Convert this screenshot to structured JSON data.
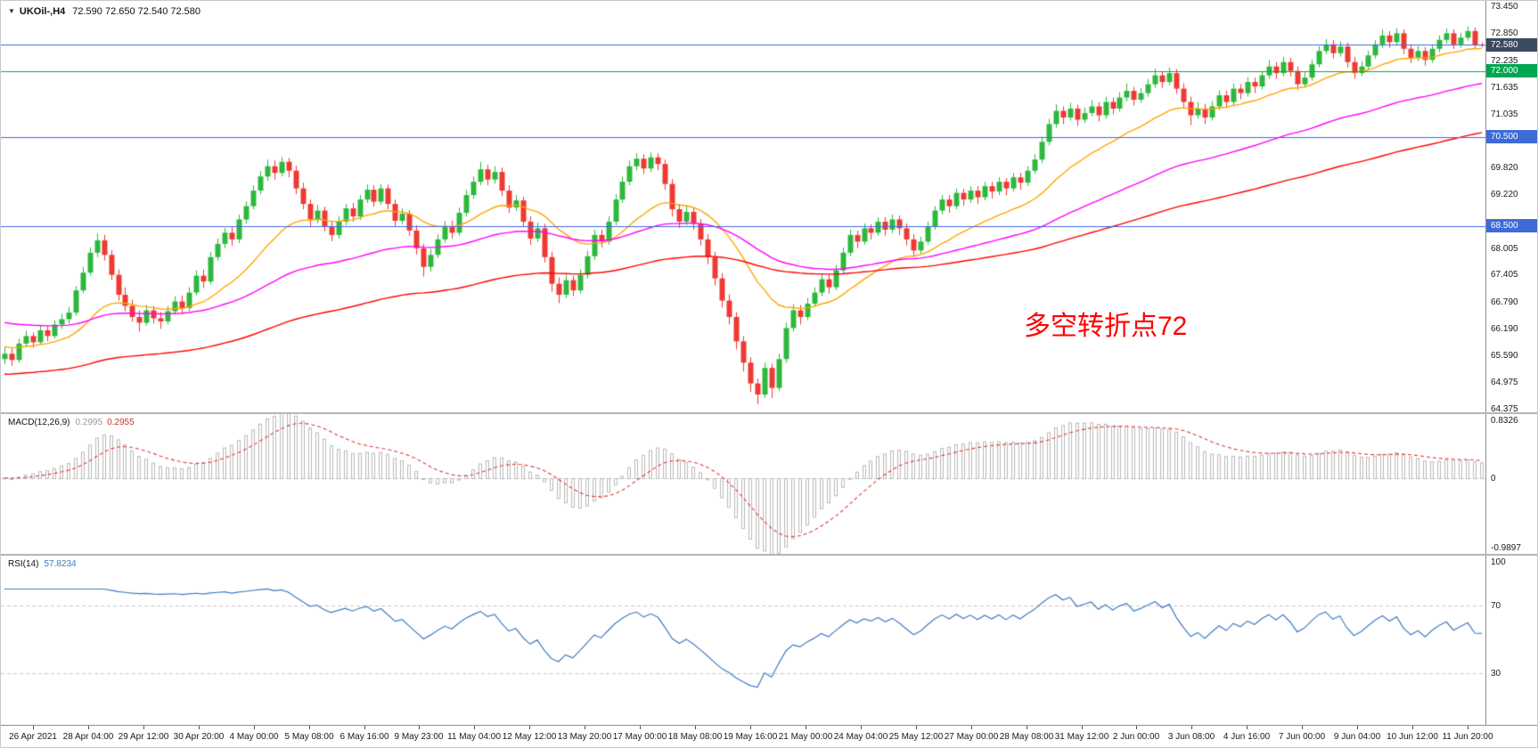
{
  "header": {
    "collapse_icon": "▼",
    "symbol": "UKOil-,H4",
    "quote": "72.590 72.650 72.540 72.580"
  },
  "annotation": {
    "text": "多空转折点72",
    "color": "#ff0000"
  },
  "chart_data": {
    "type": "candlestick",
    "symbol": "UKOil-",
    "timeframe": "H4",
    "title": "UKOil-,H4",
    "price_range": [
      64.3,
      73.58
    ],
    "up_color": "#2db83d",
    "down_color": "#ee3932",
    "candles": [
      [
        65.5,
        65.78,
        65.38,
        65.62
      ],
      [
        65.62,
        65.74,
        65.35,
        65.48
      ],
      [
        65.48,
        65.96,
        65.42,
        65.85
      ],
      [
        65.85,
        66.14,
        65.78,
        66.02
      ],
      [
        66.02,
        66.1,
        65.76,
        65.88
      ],
      [
        65.88,
        66.26,
        65.82,
        66.15
      ],
      [
        66.15,
        66.24,
        65.9,
        66.02
      ],
      [
        66.02,
        66.38,
        65.96,
        66.28
      ],
      [
        66.28,
        66.52,
        66.18,
        66.4
      ],
      [
        66.4,
        66.68,
        66.3,
        66.55
      ],
      [
        66.55,
        67.15,
        66.48,
        67.05
      ],
      [
        67.05,
        67.58,
        66.98,
        67.45
      ],
      [
        67.45,
        68.02,
        67.38,
        67.9
      ],
      [
        67.9,
        68.34,
        67.8,
        68.18
      ],
      [
        68.18,
        68.3,
        67.72,
        67.85
      ],
      [
        67.85,
        67.96,
        67.28,
        67.4
      ],
      [
        67.4,
        67.52,
        66.82,
        66.95
      ],
      [
        66.95,
        67.12,
        66.58,
        66.7
      ],
      [
        66.7,
        66.84,
        66.34,
        66.45
      ],
      [
        66.45,
        66.6,
        66.12,
        66.32
      ],
      [
        66.32,
        66.72,
        66.26,
        66.6
      ],
      [
        66.6,
        66.7,
        66.3,
        66.42
      ],
      [
        66.42,
        66.56,
        66.18,
        66.35
      ],
      [
        66.35,
        66.7,
        66.28,
        66.58
      ],
      [
        66.58,
        66.92,
        66.5,
        66.8
      ],
      [
        66.8,
        66.94,
        66.52,
        66.65
      ],
      [
        66.65,
        67.12,
        66.58,
        67.0
      ],
      [
        67.0,
        67.5,
        66.94,
        67.38
      ],
      [
        67.38,
        67.52,
        67.1,
        67.25
      ],
      [
        67.25,
        67.92,
        67.18,
        67.8
      ],
      [
        67.8,
        68.22,
        67.72,
        68.1
      ],
      [
        68.1,
        68.46,
        68.0,
        68.35
      ],
      [
        68.35,
        68.48,
        68.05,
        68.2
      ],
      [
        68.2,
        68.76,
        68.12,
        68.65
      ],
      [
        68.65,
        69.06,
        68.56,
        68.95
      ],
      [
        68.95,
        69.42,
        68.88,
        69.3
      ],
      [
        69.3,
        69.74,
        69.22,
        69.62
      ],
      [
        69.62,
        70.0,
        69.52,
        69.85
      ],
      [
        69.85,
        69.98,
        69.55,
        69.7
      ],
      [
        69.7,
        70.06,
        69.62,
        69.95
      ],
      [
        69.95,
        70.04,
        69.6,
        69.75
      ],
      [
        69.75,
        69.86,
        69.22,
        69.35
      ],
      [
        69.35,
        69.48,
        68.88,
        69.0
      ],
      [
        69.0,
        69.1,
        68.5,
        68.65
      ],
      [
        68.65,
        68.98,
        68.56,
        68.85
      ],
      [
        68.85,
        68.94,
        68.38,
        68.5
      ],
      [
        68.5,
        68.62,
        68.16,
        68.3
      ],
      [
        68.3,
        68.72,
        68.22,
        68.6
      ],
      [
        68.6,
        69.0,
        68.52,
        68.9
      ],
      [
        68.9,
        69.02,
        68.6,
        68.72
      ],
      [
        68.72,
        69.2,
        68.64,
        69.1
      ],
      [
        69.1,
        69.44,
        69.02,
        69.32
      ],
      [
        69.32,
        69.42,
        68.94,
        69.05
      ],
      [
        69.05,
        69.45,
        68.98,
        69.35
      ],
      [
        69.35,
        69.44,
        68.88,
        69.0
      ],
      [
        69.0,
        69.1,
        68.5,
        68.62
      ],
      [
        68.62,
        68.9,
        68.54,
        68.78
      ],
      [
        68.78,
        68.86,
        68.28,
        68.4
      ],
      [
        68.4,
        68.52,
        67.86,
        68.0
      ],
      [
        68.0,
        68.1,
        67.36,
        67.58
      ],
      [
        67.58,
        67.98,
        67.48,
        67.85
      ],
      [
        67.85,
        68.32,
        67.78,
        68.2
      ],
      [
        68.2,
        68.62,
        68.12,
        68.5
      ],
      [
        68.5,
        68.62,
        68.22,
        68.35
      ],
      [
        68.35,
        68.92,
        68.28,
        68.8
      ],
      [
        68.8,
        69.32,
        68.72,
        69.2
      ],
      [
        69.2,
        69.62,
        69.12,
        69.5
      ],
      [
        69.5,
        69.95,
        69.42,
        69.78
      ],
      [
        69.78,
        69.88,
        69.42,
        69.55
      ],
      [
        69.55,
        69.85,
        69.46,
        69.72
      ],
      [
        69.72,
        69.82,
        69.18,
        69.3
      ],
      [
        69.3,
        69.42,
        68.8,
        68.92
      ],
      [
        68.92,
        69.2,
        68.84,
        69.08
      ],
      [
        69.08,
        69.16,
        68.48,
        68.6
      ],
      [
        68.6,
        68.72,
        68.08,
        68.22
      ],
      [
        68.22,
        68.58,
        68.14,
        68.45
      ],
      [
        68.45,
        68.55,
        67.68,
        67.8
      ],
      [
        67.8,
        67.92,
        67.02,
        67.2
      ],
      [
        67.2,
        67.34,
        66.76,
        66.95
      ],
      [
        66.95,
        67.4,
        66.88,
        67.28
      ],
      [
        67.28,
        67.38,
        66.92,
        67.05
      ],
      [
        67.05,
        67.52,
        66.98,
        67.4
      ],
      [
        67.4,
        67.94,
        67.32,
        67.82
      ],
      [
        67.82,
        68.42,
        67.74,
        68.3
      ],
      [
        68.3,
        68.42,
        68.02,
        68.15
      ],
      [
        68.15,
        68.72,
        68.08,
        68.6
      ],
      [
        68.6,
        69.22,
        68.52,
        69.1
      ],
      [
        69.1,
        69.62,
        69.02,
        69.5
      ],
      [
        69.5,
        69.98,
        69.42,
        69.85
      ],
      [
        69.85,
        70.15,
        69.76,
        70.02
      ],
      [
        70.02,
        70.12,
        69.68,
        69.8
      ],
      [
        69.8,
        70.16,
        69.72,
        70.05
      ],
      [
        70.05,
        70.14,
        69.76,
        69.9
      ],
      [
        69.9,
        70.0,
        69.32,
        69.45
      ],
      [
        69.45,
        69.56,
        68.72,
        68.88
      ],
      [
        68.88,
        69.0,
        68.46,
        68.6
      ],
      [
        68.6,
        68.96,
        68.52,
        68.82
      ],
      [
        68.82,
        68.92,
        68.42,
        68.55
      ],
      [
        68.55,
        68.66,
        68.06,
        68.2
      ],
      [
        68.2,
        68.32,
        67.64,
        67.8
      ],
      [
        67.8,
        67.92,
        67.16,
        67.32
      ],
      [
        67.32,
        67.44,
        66.66,
        66.82
      ],
      [
        66.82,
        66.96,
        66.28,
        66.45
      ],
      [
        66.45,
        66.56,
        65.72,
        65.9
      ],
      [
        65.9,
        66.02,
        65.22,
        65.42
      ],
      [
        65.42,
        65.54,
        64.76,
        64.95
      ],
      [
        64.95,
        65.06,
        64.48,
        64.7
      ],
      [
        64.7,
        65.42,
        64.62,
        65.3
      ],
      [
        65.3,
        65.4,
        64.62,
        64.85
      ],
      [
        64.85,
        65.62,
        64.78,
        65.5
      ],
      [
        65.5,
        66.32,
        65.42,
        66.2
      ],
      [
        66.2,
        66.74,
        66.12,
        66.6
      ],
      [
        66.6,
        66.72,
        66.28,
        66.45
      ],
      [
        66.45,
        66.88,
        66.38,
        66.75
      ],
      [
        66.75,
        67.12,
        66.68,
        67.0
      ],
      [
        67.0,
        67.42,
        66.92,
        67.3
      ],
      [
        67.3,
        67.4,
        66.98,
        67.12
      ],
      [
        67.12,
        67.62,
        67.05,
        67.5
      ],
      [
        67.5,
        68.02,
        67.42,
        67.9
      ],
      [
        67.9,
        68.42,
        67.82,
        68.3
      ],
      [
        68.3,
        68.4,
        68.0,
        68.15
      ],
      [
        68.15,
        68.56,
        68.08,
        68.45
      ],
      [
        68.45,
        68.54,
        68.2,
        68.35
      ],
      [
        68.35,
        68.7,
        68.28,
        68.6
      ],
      [
        68.6,
        68.7,
        68.28,
        68.42
      ],
      [
        68.42,
        68.76,
        68.34,
        68.65
      ],
      [
        68.65,
        68.74,
        68.3,
        68.45
      ],
      [
        68.45,
        68.56,
        68.06,
        68.2
      ],
      [
        68.2,
        68.32,
        67.8,
        67.95
      ],
      [
        67.95,
        68.26,
        67.88,
        68.15
      ],
      [
        68.15,
        68.6,
        68.08,
        68.5
      ],
      [
        68.5,
        68.95,
        68.42,
        68.85
      ],
      [
        68.85,
        69.2,
        68.76,
        69.1
      ],
      [
        69.1,
        69.2,
        68.8,
        68.95
      ],
      [
        68.95,
        69.35,
        68.88,
        69.25
      ],
      [
        69.25,
        69.34,
        68.96,
        69.1
      ],
      [
        69.1,
        69.4,
        69.02,
        69.3
      ],
      [
        69.3,
        69.4,
        69.0,
        69.15
      ],
      [
        69.15,
        69.5,
        69.08,
        69.4
      ],
      [
        69.4,
        69.5,
        69.12,
        69.28
      ],
      [
        69.28,
        69.6,
        69.2,
        69.5
      ],
      [
        69.5,
        69.58,
        69.2,
        69.35
      ],
      [
        69.35,
        69.7,
        69.28,
        69.6
      ],
      [
        69.6,
        69.7,
        69.32,
        69.48
      ],
      [
        69.48,
        69.85,
        69.4,
        69.75
      ],
      [
        69.75,
        70.12,
        69.68,
        70.0
      ],
      [
        70.0,
        70.52,
        69.92,
        70.4
      ],
      [
        70.4,
        70.92,
        70.32,
        70.8
      ],
      [
        70.8,
        71.25,
        70.72,
        71.1
      ],
      [
        71.1,
        71.2,
        70.8,
        70.95
      ],
      [
        70.95,
        71.28,
        70.88,
        71.15
      ],
      [
        71.15,
        71.24,
        70.76,
        70.9
      ],
      [
        70.9,
        71.18,
        70.82,
        71.05
      ],
      [
        71.05,
        71.34,
        70.98,
        71.2
      ],
      [
        71.2,
        71.3,
        70.86,
        71.0
      ],
      [
        71.0,
        71.42,
        70.92,
        71.3
      ],
      [
        71.3,
        71.4,
        71.02,
        71.15
      ],
      [
        71.15,
        71.52,
        71.08,
        71.4
      ],
      [
        71.4,
        71.72,
        71.32,
        71.55
      ],
      [
        71.55,
        71.64,
        71.22,
        71.35
      ],
      [
        71.35,
        71.62,
        71.28,
        71.5
      ],
      [
        71.5,
        71.82,
        71.42,
        71.7
      ],
      [
        71.7,
        72.05,
        71.62,
        71.9
      ],
      [
        71.9,
        72.0,
        71.62,
        71.75
      ],
      [
        71.75,
        72.08,
        71.68,
        71.95
      ],
      [
        71.95,
        72.04,
        71.48,
        71.6
      ],
      [
        71.6,
        71.72,
        71.16,
        71.3
      ],
      [
        71.3,
        71.42,
        70.78,
        71.0
      ],
      [
        71.0,
        71.3,
        70.92,
        71.15
      ],
      [
        71.15,
        71.26,
        70.8,
        70.95
      ],
      [
        70.95,
        71.32,
        70.88,
        71.2
      ],
      [
        71.2,
        71.56,
        71.12,
        71.45
      ],
      [
        71.45,
        71.55,
        71.18,
        71.3
      ],
      [
        71.3,
        71.72,
        71.22,
        71.6
      ],
      [
        71.6,
        71.7,
        71.36,
        71.5
      ],
      [
        71.5,
        71.86,
        71.42,
        71.75
      ],
      [
        71.75,
        71.85,
        71.5,
        71.65
      ],
      [
        71.65,
        72.0,
        71.58,
        71.9
      ],
      [
        71.9,
        72.25,
        71.82,
        72.1
      ],
      [
        72.1,
        72.2,
        71.82,
        71.95
      ],
      [
        71.95,
        72.32,
        71.88,
        72.2
      ],
      [
        72.2,
        72.3,
        71.88,
        72.0
      ],
      [
        72.0,
        72.1,
        71.58,
        71.7
      ],
      [
        71.7,
        71.98,
        71.62,
        71.85
      ],
      [
        71.85,
        72.26,
        71.78,
        72.15
      ],
      [
        72.15,
        72.56,
        72.08,
        72.45
      ],
      [
        72.45,
        72.72,
        72.38,
        72.6
      ],
      [
        72.6,
        72.7,
        72.28,
        72.4
      ],
      [
        72.4,
        72.66,
        72.32,
        72.55
      ],
      [
        72.55,
        72.64,
        72.08,
        72.2
      ],
      [
        72.2,
        72.32,
        71.82,
        71.95
      ],
      [
        71.95,
        72.22,
        71.88,
        72.1
      ],
      [
        72.1,
        72.46,
        72.02,
        72.35
      ],
      [
        72.35,
        72.7,
        72.28,
        72.6
      ],
      [
        72.6,
        72.94,
        72.52,
        72.8
      ],
      [
        72.8,
        72.9,
        72.52,
        72.65
      ],
      [
        72.65,
        72.96,
        72.58,
        72.85
      ],
      [
        72.85,
        72.94,
        72.38,
        72.5
      ],
      [
        72.5,
        72.6,
        72.18,
        72.3
      ],
      [
        72.3,
        72.56,
        72.22,
        72.45
      ],
      [
        72.45,
        72.54,
        72.12,
        72.25
      ],
      [
        72.25,
        72.6,
        72.18,
        72.5
      ],
      [
        72.5,
        72.8,
        72.42,
        72.7
      ],
      [
        72.7,
        72.96,
        72.62,
        72.85
      ],
      [
        72.85,
        72.94,
        72.5,
        72.6
      ],
      [
        72.6,
        72.86,
        72.52,
        72.75
      ],
      [
        72.75,
        73.0,
        72.68,
        72.9
      ],
      [
        72.9,
        72.98,
        72.52,
        72.59
      ],
      [
        72.59,
        72.65,
        72.54,
        72.58
      ]
    ],
    "moving_averages": [
      {
        "name": "ma-fast",
        "period": 20,
        "seed": 65.8,
        "color": "#ffa500"
      },
      {
        "name": "ma-medium",
        "period": 60,
        "seed": 66.35,
        "color": "#ff00ff"
      },
      {
        "name": "ma-slow",
        "period": 120,
        "seed": 65.15,
        "color": "#ff0000"
      }
    ],
    "levels": [
      {
        "price": 72.6,
        "color": "#4169e1"
      },
      {
        "price": 72.0,
        "color": "#00a651"
      },
      {
        "price": 70.5,
        "color": "#4169e1"
      },
      {
        "price": 68.5,
        "color": "#4169e1"
      }
    ],
    "price_badges": [
      {
        "label": "72.580",
        "price": 72.58,
        "color": "#3b4a5e"
      },
      {
        "label": "72.000",
        "price": 72.0,
        "color": "#00a651"
      },
      {
        "label": "70.500",
        "price": 70.5,
        "color": "#3f6bd6"
      },
      {
        "label": "68.500",
        "price": 68.5,
        "color": "#3f6bd6"
      }
    ],
    "price_ticks": [
      73.45,
      72.85,
      72.235,
      71.635,
      71.035,
      69.82,
      69.22,
      68.005,
      67.405,
      66.79,
      66.19,
      65.59,
      64.975,
      64.375
    ],
    "time_labels": [
      "26 Apr 2021",
      "28 Apr 04:00",
      "29 Apr 12:00",
      "30 Apr 20:00",
      "4 May 00:00",
      "5 May 08:00",
      "6 May 16:00",
      "9 May 23:00",
      "11 May 04:00",
      "12 May 12:00",
      "13 May 20:00",
      "17 May 00:00",
      "18 May 08:00",
      "19 May 16:00",
      "21 May 00:00",
      "24 May 04:00",
      "25 May 12:00",
      "27 May 00:00",
      "28 May 08:00",
      "31 May 12:00",
      "2 Jun 00:00",
      "3 Jun 08:00",
      "4 Jun 16:00",
      "7 Jun 00:00",
      "9 Jun 04:00",
      "10 Jun 12:00",
      "11 Jun 20:00"
    ],
    "macd": {
      "label": "MACD(12,26,9)",
      "value_main": "0.2995",
      "value_signal": "0.2955",
      "fast": 12,
      "slow": 26,
      "signal_period": 9,
      "scale_min": -0.9897,
      "scale_max": 0.8326,
      "axis_ticks": [
        {
          "label": "0.8326",
          "value": 0.8326
        },
        {
          "label": "0",
          "value": 0
        },
        {
          "label": "-0.9897",
          "value": -0.9897
        }
      ],
      "histogram_color": "#b9b9b9",
      "signal_color": "#e03a3a"
    },
    "rsi": {
      "label": "RSI(14)",
      "value": "57.8234",
      "period": 14,
      "scale_min": 0,
      "scale_max": 100,
      "level_lines": [
        70,
        30
      ],
      "axis_ticks": [
        {
          "label": "100",
          "value": 100
        },
        {
          "label": "70",
          "value": 70
        },
        {
          "label": "30",
          "value": 30
        }
      ],
      "line_color": "#3e7bc0",
      "level_color": "#c9c9c9"
    }
  }
}
